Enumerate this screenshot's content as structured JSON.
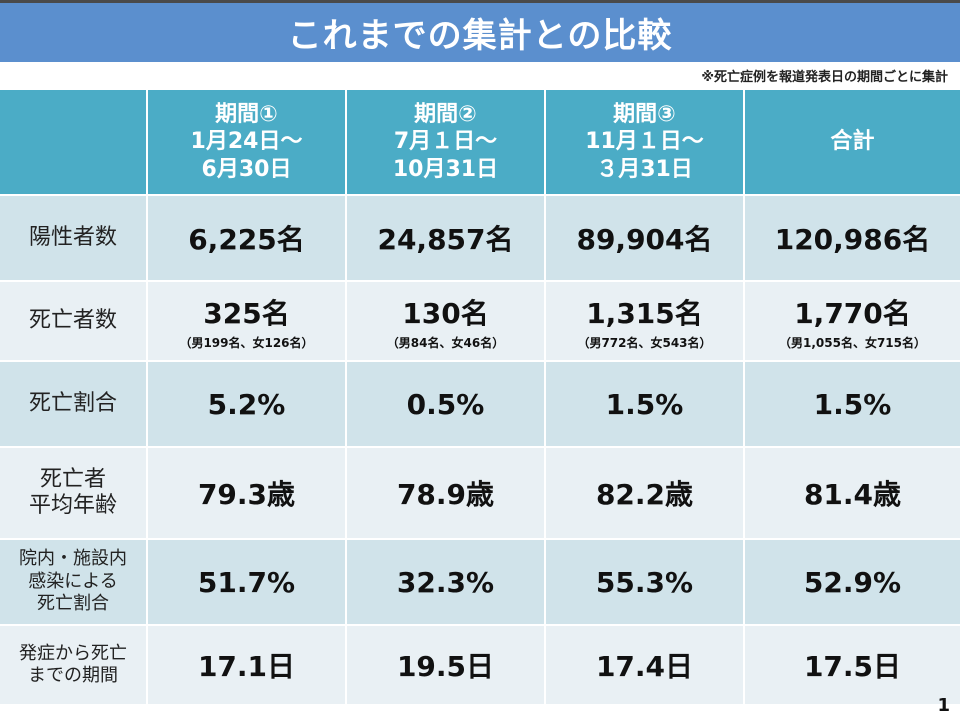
{
  "title": "これまでの集計との比較",
  "note": "※死亡症例を報道発表日の期間ごとに集計",
  "headers": [
    {
      "line1": "期間①",
      "line2": "1月24日～",
      "line3": "6月30日"
    },
    {
      "line1": "期間②",
      "line2": "7月１日～",
      "line3": "10月31日"
    },
    {
      "line1": "期間③",
      "line2": "11月１日～",
      "line3": "３月31日"
    },
    {
      "line1": "合計",
      "line2": "",
      "line3": ""
    }
  ],
  "rows": [
    {
      "label": "陽性者数",
      "values": [
        "6,225名",
        "24,857名",
        "89,904名",
        "120,986名"
      ],
      "subs": [
        "",
        "",
        "",
        ""
      ]
    },
    {
      "label": "死亡者数",
      "values": [
        "325名",
        "130名",
        "1,315名",
        "1,770名"
      ],
      "subs": [
        "（男199名、女126名）",
        "（男84名、女46名）",
        "（男772名、女543名）",
        "（男1,055名、女715名）"
      ]
    },
    {
      "label": "死亡割合",
      "values": [
        "5.2%",
        "0.5%",
        "1.5%",
        "1.5%"
      ],
      "subs": [
        "",
        "",
        "",
        ""
      ]
    },
    {
      "label_lines": [
        "死亡者",
        "平均年齢"
      ],
      "values": [
        "79.3歳",
        "78.9歳",
        "82.2歳",
        "81.4歳"
      ],
      "subs": [
        "",
        "",
        "",
        ""
      ]
    },
    {
      "label_lines": [
        "院内・施設内",
        "感染による",
        "死亡割合"
      ],
      "values": [
        "51.7%",
        "32.3%",
        "55.3%",
        "52.9%"
      ],
      "subs": [
        "",
        "",
        "",
        ""
      ]
    },
    {
      "label_lines": [
        "発症から死亡",
        "までの期間"
      ],
      "values": [
        "17.1日",
        "19.5日",
        "17.4日",
        "17.5日"
      ],
      "subs": [
        "",
        "",
        "",
        ""
      ]
    }
  ],
  "page_number": "1"
}
